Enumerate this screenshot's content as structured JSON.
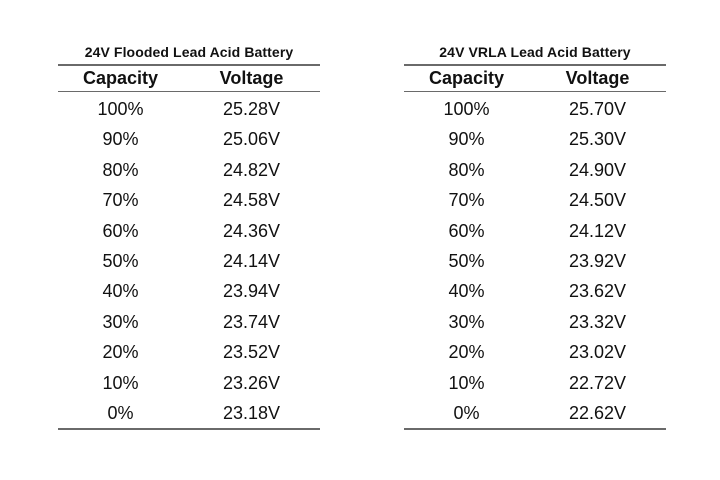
{
  "tables": [
    {
      "title": "24V Flooded Lead Acid Battery",
      "headers": {
        "capacity": "Capacity",
        "voltage": "Voltage"
      },
      "rows": [
        {
          "capacity": "100%",
          "voltage": "25.28V"
        },
        {
          "capacity": "90%",
          "voltage": "25.06V"
        },
        {
          "capacity": "80%",
          "voltage": "24.82V"
        },
        {
          "capacity": "70%",
          "voltage": "24.58V"
        },
        {
          "capacity": "60%",
          "voltage": "24.36V"
        },
        {
          "capacity": "50%",
          "voltage": "24.14V"
        },
        {
          "capacity": "40%",
          "voltage": "23.94V"
        },
        {
          "capacity": "30%",
          "voltage": "23.74V"
        },
        {
          "capacity": "20%",
          "voltage": "23.52V"
        },
        {
          "capacity": "10%",
          "voltage": "23.26V"
        },
        {
          "capacity": "0%",
          "voltage": "23.18V"
        }
      ]
    },
    {
      "title": "24V VRLA Lead Acid Battery",
      "headers": {
        "capacity": "Capacity",
        "voltage": "Voltage"
      },
      "rows": [
        {
          "capacity": "100%",
          "voltage": "25.70V"
        },
        {
          "capacity": "90%",
          "voltage": "25.30V"
        },
        {
          "capacity": "80%",
          "voltage": "24.90V"
        },
        {
          "capacity": "70%",
          "voltage": "24.50V"
        },
        {
          "capacity": "60%",
          "voltage": "24.12V"
        },
        {
          "capacity": "50%",
          "voltage": "23.92V"
        },
        {
          "capacity": "40%",
          "voltage": "23.62V"
        },
        {
          "capacity": "30%",
          "voltage": "23.32V"
        },
        {
          "capacity": "20%",
          "voltage": "23.02V"
        },
        {
          "capacity": "10%",
          "voltage": "22.72V"
        },
        {
          "capacity": "0%",
          "voltage": "22.62V"
        }
      ]
    }
  ]
}
